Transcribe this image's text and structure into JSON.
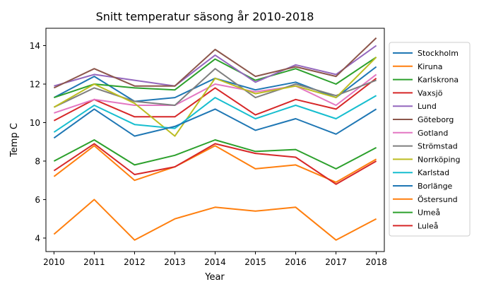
{
  "chart_data": {
    "type": "line",
    "title": "Snitt temperatur säsong år 2010-2018",
    "xlabel": "Year",
    "ylabel": "Temp C",
    "x": [
      2010,
      2011,
      2012,
      2013,
      2014,
      2015,
      2016,
      2017,
      2018
    ],
    "xlim": [
      2009.8,
      2018.2
    ],
    "ylim": [
      3.3,
      14.9
    ],
    "yticks": [
      4,
      6,
      8,
      10,
      12,
      14
    ],
    "grid": false,
    "legend": "right-outside",
    "series": [
      {
        "name": "Stockholm",
        "color": "#1f77b4",
        "values": [
          11.3,
          12.4,
          11.1,
          11.3,
          12.3,
          11.7,
          12.1,
          11.3,
          12.9
        ]
      },
      {
        "name": "Kiruna",
        "color": "#ff7f0e",
        "values": [
          4.2,
          6.0,
          3.9,
          5.0,
          5.6,
          5.4,
          5.6,
          3.9,
          5.0
        ]
      },
      {
        "name": "Karlskrona",
        "color": "#2ca02c",
        "values": [
          11.3,
          12.0,
          11.8,
          11.7,
          13.3,
          12.2,
          12.8,
          12.0,
          13.4
        ]
      },
      {
        "name": "Vaxsjö",
        "color": "#d62728",
        "values": [
          10.1,
          11.2,
          10.3,
          10.3,
          11.8,
          10.4,
          11.2,
          10.7,
          12.3
        ]
      },
      {
        "name": "Lund",
        "color": "#9467bd",
        "values": [
          11.9,
          12.5,
          12.2,
          11.9,
          13.5,
          12.1,
          13.0,
          12.5,
          14.0
        ]
      },
      {
        "name": "Göteborg",
        "color": "#8c564b",
        "values": [
          11.8,
          12.8,
          11.9,
          11.9,
          13.8,
          12.4,
          12.9,
          12.4,
          14.4
        ]
      },
      {
        "name": "Gotland",
        "color": "#e377c2",
        "values": [
          10.5,
          11.2,
          10.9,
          10.9,
          12.0,
          11.6,
          11.9,
          10.9,
          12.5
        ]
      },
      {
        "name": "Strömstad",
        "color": "#7f7f7f",
        "values": [
          10.8,
          11.8,
          11.1,
          10.9,
          12.8,
          11.3,
          12.0,
          11.4,
          12.2
        ]
      },
      {
        "name": "Norrköping",
        "color": "#bcbd22",
        "values": [
          10.8,
          12.0,
          11.0,
          9.3,
          12.3,
          11.5,
          11.9,
          11.3,
          13.4
        ]
      },
      {
        "name": "Karlstad",
        "color": "#17becf",
        "values": [
          9.5,
          10.9,
          9.9,
          9.7,
          11.3,
          10.2,
          10.9,
          10.2,
          11.4
        ]
      },
      {
        "name": "Borlänge",
        "color": "#1f77b4",
        "values": [
          9.2,
          10.7,
          9.3,
          9.8,
          10.7,
          9.6,
          10.2,
          9.4,
          10.7
        ]
      },
      {
        "name": "Östersund",
        "color": "#ff7f0e",
        "values": [
          7.2,
          8.8,
          7.0,
          7.7,
          8.8,
          7.6,
          7.8,
          6.9,
          8.1
        ]
      },
      {
        "name": "Umeå",
        "color": "#2ca02c",
        "values": [
          8.0,
          9.1,
          7.8,
          8.3,
          9.1,
          8.5,
          8.6,
          7.6,
          8.7
        ]
      },
      {
        "name": "Luleå",
        "color": "#d62728",
        "values": [
          7.5,
          8.9,
          7.3,
          7.7,
          8.9,
          8.4,
          8.2,
          6.8,
          8.0
        ]
      }
    ]
  }
}
